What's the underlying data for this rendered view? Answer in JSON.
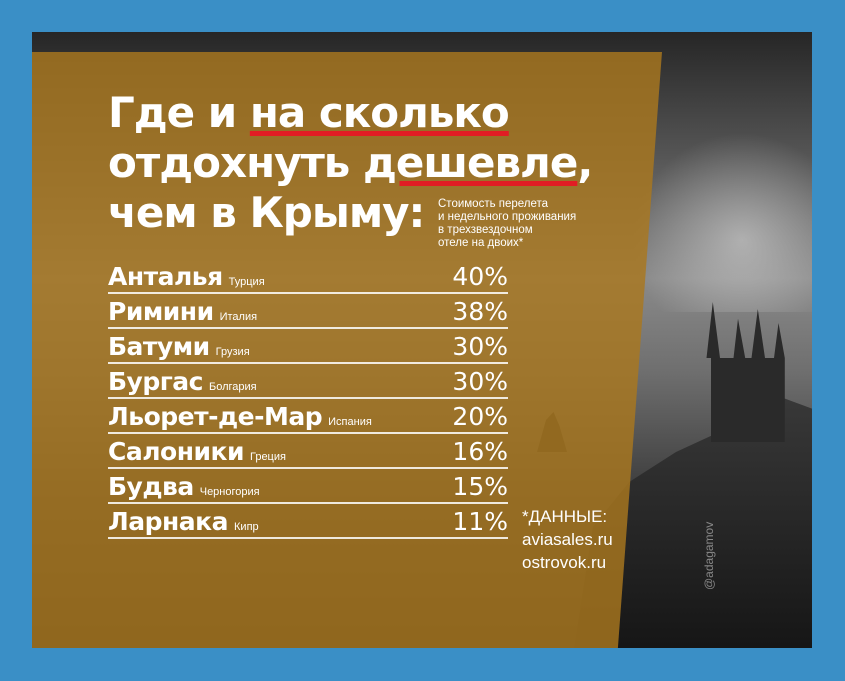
{
  "title": {
    "line1_pre": "Где и ",
    "line1_ul": "на сколько",
    "line2_pre": "отдохнуть ",
    "line2_ul": "дешевле",
    "line2_post": ",",
    "line3": "чем в Крыму:"
  },
  "note": {
    "lines": [
      "Стоимость перелета",
      "и недельного проживания",
      "в трехзвездочном",
      "отеле на двоих*"
    ]
  },
  "rows": [
    {
      "city": "Анталья",
      "country": "Турция",
      "percent": "40%"
    },
    {
      "city": "Римини",
      "country": "Италия",
      "percent": "38%"
    },
    {
      "city": "Батуми",
      "country": "Грузия",
      "percent": "30%"
    },
    {
      "city": "Бургас",
      "country": "Болгария",
      "percent": "30%"
    },
    {
      "city": "Льорет-де-Мар",
      "country": "Испания",
      "percent": "20%"
    },
    {
      "city": "Салоники",
      "country": "Греция",
      "percent": "16%"
    },
    {
      "city": "Будва",
      "country": "Черногория",
      "percent": "15%"
    },
    {
      "city": "Ларнака",
      "country": "Кипр",
      "percent": "11%"
    }
  ],
  "source": {
    "heading": "*ДАННЫЕ:",
    "site1": "aviasales.ru",
    "site2": "ostrovok.ru"
  },
  "watermark": "@adagamov",
  "colors": {
    "frame": "#3a8fc6",
    "panel": "#aa781e",
    "underline": "#e11d24"
  }
}
